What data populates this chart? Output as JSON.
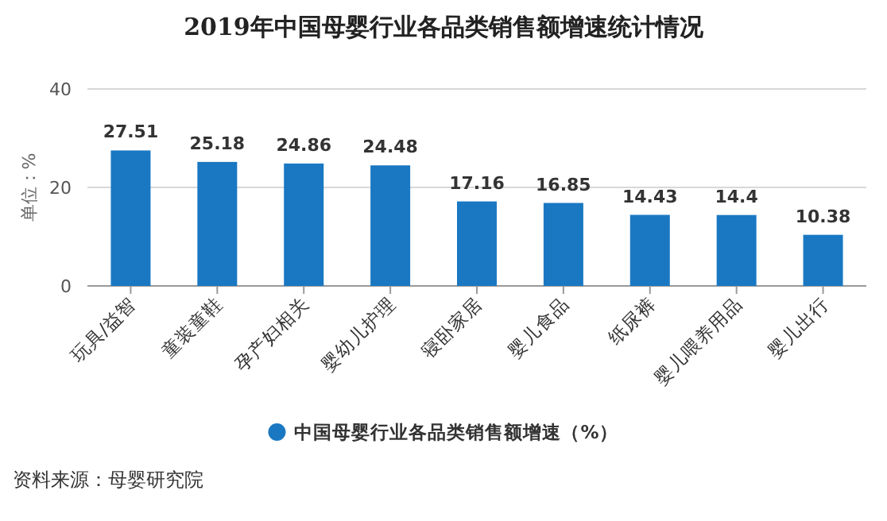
{
  "chart_data": {
    "type": "bar",
    "title": "2019年中国母婴行业各品类销售额增速统计情况",
    "ylabel": "单位：%",
    "categories": [
      "玩具/益智",
      "童装童鞋",
      "孕产妇相关",
      "婴幼儿护理",
      "寝卧家居",
      "婴儿食品",
      "纸尿裤",
      "婴儿喂养用品",
      "婴儿出行"
    ],
    "series": [
      {
        "name": "中国母婴行业各品类销售额增速（%）",
        "color": "#1a78c2",
        "values": [
          27.51,
          25.18,
          24.86,
          24.48,
          17.16,
          16.85,
          14.43,
          14.4,
          10.38
        ]
      }
    ],
    "ylim": [
      0,
      40
    ],
    "yticks": [
      0,
      20,
      40
    ],
    "grid": "y",
    "legend": "bottom",
    "data_labels": true,
    "annotations": [
      "资料来源：母婴研究院"
    ]
  }
}
